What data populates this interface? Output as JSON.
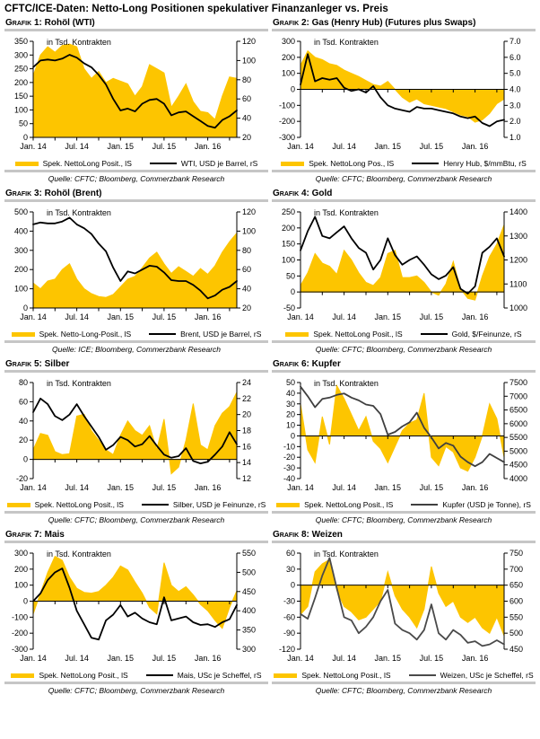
{
  "page": {
    "title": "CFTC/ICE-Daten: Netto-Long Positionen spekulativer Finanzanleger vs. Preis"
  },
  "colors": {
    "area": "#FDC500",
    "line_default": "#000000",
    "rule": "#C6C6C6"
  },
  "blocks": [
    {
      "label": "Grafik 1:",
      "legend_area": "Spek. NettoLong Posit., lS",
      "legend_line": "WTI, USD je Barrel, rS",
      "source": "Quelle: CFTC; Bloomberg, Commerzbank Research"
    },
    {
      "label": "Grafik 2:",
      "legend_area": "Spek. NettoLong Pos., lS",
      "legend_line": "Henry Hub, $/mmBtu, rS",
      "source": "Quelle: CFTC; Bloomberg, Commerzbank Research"
    },
    {
      "label": "Grafik 3:",
      "legend_area": "Spek. Netto-Long-Posit., lS",
      "legend_line": "Brent, USD je Barrel, rS",
      "source": "Quelle: ICE; Bloomberg, Commerzbank Research"
    },
    {
      "label": "Grafik 4:",
      "legend_area": "Spek. NettoLong Posit., lS",
      "legend_line": "Gold, $/Feinunze, rS",
      "source": "Quelle: CFTC; Bloomberg, Commerzbank Research"
    },
    {
      "label": "Grafik 5:",
      "legend_area": "Spek. NettoLong Posit., lS",
      "legend_line": "Silber, USD je Feinunze, rS",
      "source": "Quelle: CFTC; Bloomberg, Commerzbank Research"
    },
    {
      "label": "Grafik 6:",
      "legend_area": "Spek. NettoLong Posit., lS",
      "legend_line": "Kupfer (USD je Tonne), rS",
      "source": "Quelle: CFTC; Bloomberg, Commerzbank Research"
    },
    {
      "label": "Grafik 7:",
      "legend_area": "Spek. NettoLong Posit., lS",
      "legend_line": "Mais, USc je Scheffel, rS",
      "source": "Quelle: CFTC; Bloomberg, Commerzbank Research"
    },
    {
      "label": "Grafik 8:",
      "legend_area": "Spek. NettoLong Posit., lS",
      "legend_line": "Weizen, USc je Scheffel, rS",
      "source": "Quelle: CFTC; Bloomberg, Commerzbank Research"
    }
  ],
  "chart_data": [
    {
      "type": "area+line",
      "title": "Rohöl (WTI)",
      "unit_note": "in Tsd. Kontrakten",
      "x_labels": [
        {
          "i": 0,
          "t": "Jan. 14"
        },
        {
          "i": 6,
          "t": "Jul. 14"
        },
        {
          "i": 12,
          "t": "Jan. 15"
        },
        {
          "i": 18,
          "t": "Jul. 15"
        },
        {
          "i": 24,
          "t": "Jan. 16"
        }
      ],
      "x_minor_tick_every": 3,
      "left_axis": {
        "min": 0,
        "max": 350,
        "step": 50,
        "decimals": 0
      },
      "right_axis": {
        "min": 20,
        "max": 120,
        "step": 20,
        "decimals": 0
      },
      "line_color": "#000000",
      "series": [
        {
          "name": "Spek. NettoLong Posit., lS",
          "axis": "left",
          "type": "area",
          "values": [
            225,
            300,
            330,
            310,
            335,
            340,
            330,
            250,
            215,
            240,
            200,
            215,
            205,
            195,
            150,
            185,
            265,
            250,
            235,
            110,
            150,
            195,
            130,
            95,
            90,
            65,
            150,
            220,
            215
          ]
        },
        {
          "name": "WTI, USD je Barrel, rS",
          "axis": "right",
          "type": "line",
          "values": [
            93,
            100,
            101,
            100,
            102,
            106,
            103,
            97,
            93,
            85,
            75,
            60,
            48,
            50,
            47,
            55,
            59,
            60,
            55,
            43,
            46,
            47,
            42,
            37,
            32,
            30,
            38,
            42,
            48
          ]
        }
      ]
    },
    {
      "type": "area+line",
      "title": "Gas (Henry Hub) (Futures plus Swaps)",
      "unit_note": "in Tsd. Kontrakten",
      "x_labels": [
        {
          "i": 0,
          "t": "Jan. 14"
        },
        {
          "i": 6,
          "t": "Jul. 14"
        },
        {
          "i": 12,
          "t": "Jan. 15"
        },
        {
          "i": 18,
          "t": "Jul. 15"
        },
        {
          "i": 24,
          "t": "Jan. 16"
        }
      ],
      "x_minor_tick_every": 3,
      "left_axis": {
        "min": -300,
        "max": 300,
        "step": 100,
        "decimals": 0
      },
      "right_axis": {
        "min": 1,
        "max": 7,
        "step": 1,
        "decimals": 1
      },
      "line_color": "#000000",
      "series": [
        {
          "name": "Spek. NettoLong Pos., lS",
          "axis": "left",
          "type": "area",
          "values": [
            150,
            240,
            200,
            185,
            160,
            150,
            120,
            100,
            80,
            55,
            30,
            20,
            50,
            0,
            -50,
            -80,
            -60,
            -90,
            -100,
            -110,
            -120,
            -140,
            -160,
            -170,
            -205,
            -190,
            -150,
            -90,
            -60
          ]
        },
        {
          "name": "Henry Hub, $/mmBtu, rS",
          "axis": "right",
          "type": "line",
          "values": [
            4.3,
            6.2,
            4.5,
            4.7,
            4.6,
            4.7,
            4.1,
            3.9,
            4.0,
            3.8,
            4.2,
            3.5,
            3.0,
            2.8,
            2.7,
            2.6,
            2.9,
            2.8,
            2.8,
            2.7,
            2.6,
            2.5,
            2.3,
            2.2,
            2.3,
            1.9,
            1.7,
            2.0,
            2.1
          ]
        }
      ]
    },
    {
      "type": "area+line",
      "title": "Rohöl (Brent)",
      "unit_note": "in Tsd. Kontrakten",
      "x_labels": [
        {
          "i": 0,
          "t": "Jan. 14"
        },
        {
          "i": 6,
          "t": "Jul. 14"
        },
        {
          "i": 12,
          "t": "Jan. 15"
        },
        {
          "i": 18,
          "t": "Jul. 15"
        },
        {
          "i": 24,
          "t": "Jan. 16"
        }
      ],
      "x_minor_tick_every": 3,
      "left_axis": {
        "min": 0,
        "max": 500,
        "step": 100,
        "decimals": 0
      },
      "right_axis": {
        "min": 20,
        "max": 120,
        "step": 20,
        "decimals": 0
      },
      "line_color": "#000000",
      "series": [
        {
          "name": "Spek. Netto-Long-Posit., lS",
          "axis": "left",
          "type": "area",
          "values": [
            130,
            100,
            140,
            150,
            200,
            230,
            150,
            100,
            75,
            60,
            55,
            70,
            110,
            150,
            165,
            210,
            260,
            290,
            230,
            180,
            215,
            190,
            165,
            205,
            175,
            220,
            290,
            345,
            390
          ]
        },
        {
          "name": "Brent, USD je Barrel, rS",
          "axis": "right",
          "type": "line",
          "values": [
            107,
            109,
            108,
            108,
            110,
            114,
            107,
            103,
            97,
            87,
            79,
            62,
            48,
            58,
            56,
            60,
            64,
            63,
            57,
            49,
            48,
            48,
            44,
            38,
            30,
            33,
            39,
            42,
            48
          ]
        }
      ]
    },
    {
      "type": "area+line",
      "title": "Gold",
      "unit_note": "in Tsd. Kontrakten",
      "x_labels": [
        {
          "i": 0,
          "t": "Jan. 14"
        },
        {
          "i": 6,
          "t": "Jul. 14"
        },
        {
          "i": 12,
          "t": "Jan. 15"
        },
        {
          "i": 18,
          "t": "Jul. 15"
        },
        {
          "i": 24,
          "t": "Jan. 16"
        }
      ],
      "x_minor_tick_every": 3,
      "left_axis": {
        "min": -50,
        "max": 250,
        "step": 50,
        "decimals": 0
      },
      "right_axis": {
        "min": 1000,
        "max": 1400,
        "step": 100,
        "decimals": 0
      },
      "line_color": "#000000",
      "series": [
        {
          "name": "Spek. NettoLong Posit., lS",
          "axis": "left",
          "type": "area",
          "values": [
            20,
            60,
            120,
            90,
            80,
            55,
            130,
            100,
            60,
            30,
            20,
            45,
            120,
            130,
            45,
            45,
            50,
            30,
            0,
            -10,
            25,
            95,
            10,
            -20,
            -25,
            50,
            110,
            150,
            210
          ]
        },
        {
          "name": "Gold, $/Feinunze, rS",
          "axis": "right",
          "type": "line",
          "values": [
            1240,
            1320,
            1380,
            1300,
            1290,
            1315,
            1340,
            1290,
            1250,
            1230,
            1160,
            1200,
            1290,
            1220,
            1180,
            1200,
            1215,
            1180,
            1140,
            1120,
            1135,
            1170,
            1080,
            1060,
            1090,
            1230,
            1255,
            1290,
            1215
          ]
        }
      ]
    },
    {
      "type": "area+line",
      "title": "Silber",
      "unit_note": "in Tsd. Kontrakten",
      "x_labels": [
        {
          "i": 0,
          "t": "Jan. 14"
        },
        {
          "i": 6,
          "t": "Jul. 14"
        },
        {
          "i": 12,
          "t": "Jan. 15"
        },
        {
          "i": 18,
          "t": "Jul. 15"
        },
        {
          "i": 24,
          "t": "Jan. 16"
        }
      ],
      "x_minor_tick_every": 3,
      "left_axis": {
        "min": -20,
        "max": 80,
        "step": 20,
        "decimals": 0
      },
      "right_axis": {
        "min": 12,
        "max": 24,
        "step": 2,
        "decimals": 0
      },
      "line_color": "#000000",
      "series": [
        {
          "name": "Spek. NettoLong Posit., lS",
          "axis": "left",
          "type": "area",
          "values": [
            10,
            27,
            25,
            8,
            5,
            6,
            45,
            47,
            30,
            20,
            10,
            5,
            25,
            40,
            30,
            25,
            35,
            10,
            42,
            -15,
            -8,
            20,
            58,
            15,
            10,
            35,
            48,
            55,
            70
          ]
        },
        {
          "name": "Silber, USD je Feinunze, rS",
          "axis": "right",
          "type": "line",
          "values": [
            20.3,
            22.0,
            21.3,
            19.8,
            19.3,
            20.0,
            21.3,
            19.8,
            18.5,
            17.2,
            15.6,
            16.2,
            17.2,
            16.8,
            16.0,
            16.3,
            17.3,
            16.1,
            15.0,
            14.6,
            14.8,
            15.8,
            14.2,
            13.9,
            14.1,
            15.0,
            16.0,
            17.8,
            16.3
          ]
        }
      ]
    },
    {
      "type": "area+line",
      "title": "Kupfer",
      "unit_note": "in Tsd. Kontrakten",
      "x_labels": [
        {
          "i": 0,
          "t": "Jan. 14"
        },
        {
          "i": 6,
          "t": "Jul. 14"
        },
        {
          "i": 12,
          "t": "Jan. 15"
        },
        {
          "i": 18,
          "t": "Jul. 15"
        },
        {
          "i": 24,
          "t": "Jan. 16"
        }
      ],
      "x_minor_tick_every": 3,
      "left_axis": {
        "min": -40,
        "max": 50,
        "step": 10,
        "decimals": 0
      },
      "right_axis": {
        "min": 4000,
        "max": 7500,
        "step": 500,
        "decimals": 0
      },
      "line_color": "#3f3f3f",
      "series": [
        {
          "name": "Spek. NettoLong Posit., lS",
          "axis": "left",
          "type": "area",
          "values": [
            30,
            -13,
            -25,
            18,
            -8,
            47,
            35,
            20,
            5,
            18,
            -5,
            -12,
            -25,
            -10,
            5,
            12,
            15,
            40,
            -20,
            -28,
            -10,
            -15,
            -30,
            -33,
            -20,
            0,
            30,
            16,
            -20
          ]
        },
        {
          "name": "Kupfer (USD je Tonne), rS",
          "axis": "right",
          "type": "line",
          "values": [
            7350,
            7000,
            6600,
            6900,
            6950,
            7050,
            7100,
            6950,
            6850,
            6700,
            6650,
            6350,
            5600,
            5700,
            5900,
            6050,
            6400,
            5850,
            5500,
            5100,
            5300,
            5200,
            4800,
            4600,
            4450,
            4600,
            4900,
            4750,
            4600
          ]
        }
      ]
    },
    {
      "type": "area+line",
      "title": "Mais",
      "unit_note": "in Tsd. Kontrakten",
      "x_labels": [
        {
          "i": 0,
          "t": "Jan. 14"
        },
        {
          "i": 6,
          "t": "Jul. 14"
        },
        {
          "i": 12,
          "t": "Jan. 15"
        },
        {
          "i": 18,
          "t": "Jul. 15"
        },
        {
          "i": 24,
          "t": "Jan. 16"
        }
      ],
      "x_minor_tick_every": 3,
      "left_axis": {
        "min": -300,
        "max": 300,
        "step": 100,
        "decimals": 0
      },
      "right_axis": {
        "min": 300,
        "max": 550,
        "step": 50,
        "decimals": 0
      },
      "line_color": "#000000",
      "series": [
        {
          "name": "Spek. NettoLong Posit., lS",
          "axis": "left",
          "type": "area",
          "values": [
            -80,
            50,
            180,
            280,
            255,
            150,
            80,
            55,
            50,
            60,
            100,
            150,
            220,
            195,
            120,
            50,
            -40,
            -80,
            240,
            100,
            60,
            90,
            40,
            -20,
            -60,
            -120,
            -170,
            -40,
            65
          ]
        },
        {
          "name": "Mais, USc je Scheffel, rS",
          "axis": "right",
          "type": "line",
          "values": [
            425,
            445,
            480,
            500,
            510,
            460,
            400,
            365,
            330,
            325,
            375,
            390,
            415,
            385,
            395,
            380,
            370,
            365,
            435,
            375,
            380,
            385,
            370,
            363,
            365,
            358,
            370,
            378,
            415
          ]
        }
      ]
    },
    {
      "type": "area+line",
      "title": "Weizen",
      "unit_note": "in Tsd. Kontrakten",
      "x_labels": [
        {
          "i": 0,
          "t": "Jan. 14"
        },
        {
          "i": 6,
          "t": "Jul. 14"
        },
        {
          "i": 12,
          "t": "Jan. 15"
        },
        {
          "i": 18,
          "t": "Jul. 15"
        },
        {
          "i": 24,
          "t": "Jan. 16"
        }
      ],
      "x_minor_tick_every": 3,
      "left_axis": {
        "min": -120,
        "max": 60,
        "step": 30,
        "decimals": 0
      },
      "right_axis": {
        "min": 450,
        "max": 750,
        "step": 50,
        "decimals": 0
      },
      "line_color": "#4a4a4a",
      "series": [
        {
          "name": "Spek. NettoLong Posit., lS",
          "axis": "left",
          "type": "area",
          "values": [
            -55,
            -40,
            25,
            40,
            48,
            -10,
            -40,
            -50,
            -65,
            -60,
            -45,
            -30,
            25,
            -20,
            -45,
            -60,
            -80,
            -45,
            35,
            -15,
            -40,
            -30,
            -60,
            -70,
            -60,
            -80,
            -90,
            -60,
            -95
          ]
        },
        {
          "name": "Weizen, USc je Scheffel, rS",
          "axis": "right",
          "type": "line",
          "values": [
            560,
            545,
            610,
            680,
            735,
            640,
            550,
            540,
            500,
            520,
            550,
            600,
            635,
            530,
            510,
            500,
            480,
            510,
            590,
            500,
            480,
            510,
            495,
            470,
            475,
            460,
            465,
            478,
            465
          ]
        }
      ]
    }
  ]
}
